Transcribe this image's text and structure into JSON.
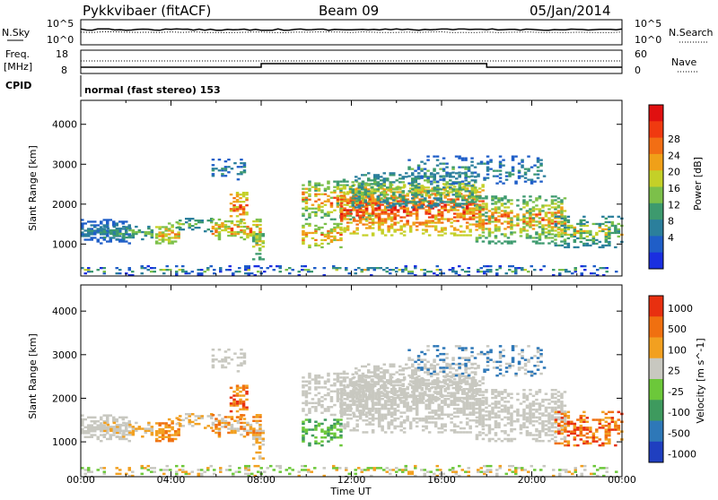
{
  "header": {
    "station": "Pykkvibaer (fitACF)",
    "beam": "Beam 09",
    "date": "05/Jan/2014"
  },
  "summary": {
    "nsky_label": "N.Sky",
    "nsky_ticks": [
      "10^5",
      "10^0"
    ],
    "nsearch_ticks": [
      "10^5",
      "10^0"
    ],
    "nsearch_label": "N.Search",
    "freq_label_top": "Freq.",
    "freq_label_bottom": "[MHz]",
    "freq_ticks": [
      "18",
      "8"
    ],
    "nave_ticks": [
      "60",
      "0"
    ],
    "nave_label": "Nave",
    "cpid_label": "CPID",
    "cpid_text": "normal (fast stereo) 153"
  },
  "chart_data": [
    {
      "type": "heatmap",
      "name": "power",
      "ylabel": "Slant Range [km]",
      "yticks": [
        1000,
        2000,
        3000,
        4000
      ],
      "ylim": [
        200,
        4600
      ],
      "xlim": [
        0,
        24
      ],
      "xticks": [
        "00:00",
        "04:00",
        "08:00",
        "12:00",
        "16:00",
        "20:00",
        "00:00"
      ],
      "xlabel": "Time UT",
      "colorbar": {
        "label": "Power [dB]",
        "ticks": [
          "4",
          "8",
          "12",
          "16",
          "20",
          "24",
          "28"
        ],
        "colors": [
          "#1a2fe0",
          "#1f5ec8",
          "#2b7f9c",
          "#3d9a6e",
          "#7cc04a",
          "#c4d028",
          "#f0a018",
          "#f26e14",
          "#f03a10",
          "#e01010"
        ]
      }
    },
    {
      "type": "heatmap",
      "name": "velocity",
      "ylabel": "Slant Range [km]",
      "yticks": [
        1000,
        2000,
        3000,
        4000
      ],
      "ylim": [
        200,
        4600
      ],
      "xlim": [
        0,
        24
      ],
      "colorbar": {
        "label": "Velocity [m s^-1]",
        "ticks": [
          "1000",
          "500",
          "100",
          "25",
          "-25",
          "-100",
          "-500",
          "-1000"
        ],
        "colors": [
          "#1f3fc0",
          "#2e78b8",
          "#3e9a5e",
          "#6cc83a",
          "#c8c8c0",
          "#f2a020",
          "#f07010",
          "#e83010"
        ]
      }
    }
  ]
}
